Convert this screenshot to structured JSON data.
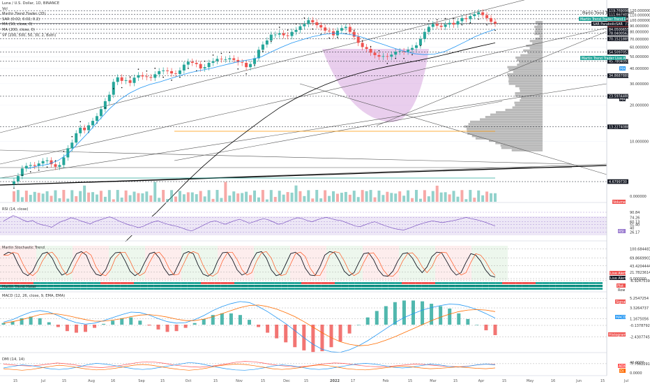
{
  "header": {
    "title": "Luna / U.S. Dollar, 1D, BINANCE",
    "legend": [
      "Vol",
      "Martin Trend Trader (35)",
      "SAR (0.02, 0.02, 0.2)",
      "MA (50, close, 0)",
      "MA (200, close, 0)",
      "VP (200, 500, 50, 30, 2, Both)"
    ]
  },
  "panes": {
    "rsi": "RSI (14, close)",
    "stoch": "Martin Stochastic Trend",
    "meter": "Martin Trend Meter",
    "macd": "MACD (12, 26, close, 9, EMA, EMA)",
    "dmi": "DMI (14, 14)"
  },
  "tags": {
    "stop_loss": "Martin Trend Trader Stop Loss",
    "trend_line": "Martin Trend Trader Trend Line",
    "sar": "SAR ParabolicSAR",
    "live_alert": "Martin Trend Trader Live Alert",
    "ma": "MA",
    "volume": "Volume",
    "rsi": "RSI",
    "stoch_live_alert": "Live Alert",
    "stoch_live_alert2": "Live Alert",
    "meter_plot": "Plot",
    "meter_row": "Row",
    "signal": "Signal",
    "macd": "MACD",
    "histogram": "Histogram",
    "adx": "ADX",
    "di": "DI"
  },
  "colors": {
    "up": "#26a69a",
    "down": "#ef5350",
    "ma50": "#2196f3",
    "ma200": "#000000",
    "vp": "#808080",
    "cup": "#ce93d8",
    "macd": "#2196f3",
    "signal": "#ff6d00",
    "adx": "#ff5252",
    "di_plus": "#2196f3",
    "di_minus": "#ff6d00"
  },
  "chart_data": {
    "type": "candlestick",
    "symbol": "LUNAUSD",
    "exchange": "BINANCE",
    "interval": "1D",
    "scale": "log",
    "x_axis_ticks": [
      "15",
      "Jul",
      "15",
      "Aug",
      "16",
      "Sep",
      "15",
      "Oct",
      "15",
      "Nov",
      "15",
      "Dec",
      "15",
      "2022",
      "17",
      "Feb",
      "15",
      "Mar",
      "15",
      "Apr",
      "15",
      "May",
      "16",
      "Jun",
      "15",
      "Jul"
    ],
    "price_axis_labels": [
      "120.000000",
      "110.000000",
      "100.000000",
      "90.000000",
      "80.000000",
      "70.000000",
      "60.000000",
      "50.000000",
      "40.000000",
      "30.000000",
      "20.000000",
      "10.000000",
      "0.000000"
    ],
    "price_levels": [
      {
        "value": "119.7690986",
        "bg": "#131722"
      },
      {
        "value": "111.6674013",
        "bg": "#131722"
      },
      {
        "value": "102.6068603",
        "bg": "#131722"
      },
      {
        "value": "93.6990049",
        "bg": "#ef5350"
      },
      {
        "value": "09:16:14",
        "bg": "#ef5350"
      },
      {
        "value": "92.7886777",
        "bg": "#131722"
      },
      {
        "value": "84.0500655",
        "bg": "#131722"
      },
      {
        "value": "78.0400562",
        "bg": "#131722"
      },
      {
        "value": "70.1521885",
        "bg": "#131722"
      },
      {
        "value": "54.5097053",
        "bg": "#131722"
      },
      {
        "value": "45.7804091",
        "bg": "#131722"
      },
      {
        "value": "34.8687889",
        "bg": "#131722"
      },
      {
        "value": "23.5934480",
        "bg": "#131722"
      },
      {
        "value": "13.2274088",
        "bg": "#131722"
      },
      {
        "value": "4.6799730",
        "bg": "#131722"
      }
    ],
    "volume_axis_labels": [
      "0.000000"
    ],
    "rsi_levels": [
      "90.84",
      "74.26",
      "60.13",
      "51.40",
      "40",
      "26.17"
    ],
    "stoch_levels": [
      "100.6844836",
      "69.8669903",
      "43.4204444",
      "21.7823614",
      "0.000000",
      "-6.9247539"
    ],
    "macd_levels": [
      "5.2547254",
      "3.3264737",
      "1.1675056",
      "-0.1378792",
      "-2.4307745",
      "-7.7562291"
    ],
    "dmi_levels": [
      "40.0000",
      "0.0000"
    ],
    "close_series": [
      4.7,
      5.2,
      6.0,
      6.3,
      6.4,
      6.3,
      6.6,
      6.9,
      7.0,
      6.5,
      6.2,
      6.4,
      7.4,
      8.8,
      9.8,
      11.7,
      13.0,
      12.4,
      13.6,
      14.8,
      16.2,
      18.5,
      21.5,
      24.3,
      31.0,
      33.8,
      31.6,
      32.0,
      30.4,
      33.6,
      35.2,
      34.4,
      34.0,
      33.5,
      35.8,
      38.0,
      38.5,
      38.0,
      36.4,
      36.0,
      38.5,
      43.0,
      45.5,
      44.5,
      43.5,
      40.0,
      41.0,
      44.5,
      46.0,
      48.0,
      47.5,
      47.5,
      48.5,
      47.0,
      45.0,
      44.5,
      41.0,
      43.5,
      48.5,
      57.0,
      63.0,
      68.0,
      76.0,
      76.0,
      78.0,
      75.0,
      74.0,
      80.0,
      83.0,
      89.0,
      93.0,
      100.0,
      96.0,
      91.0,
      87.0,
      82.0,
      81.0,
      75.0,
      82.0,
      86.0,
      88.0,
      80.0,
      73.0,
      65.0,
      60.0,
      58.0,
      54.0,
      51.5,
      50.0,
      50.5,
      50.0,
      52.0,
      55.0,
      55.5,
      55.0,
      57.0,
      59.0,
      62.0,
      70.0,
      80.0,
      88.0,
      93.0,
      90.0,
      88.0,
      92.0,
      95.0,
      92.0,
      98.0,
      104.0,
      102.0,
      108.0,
      112.0,
      116.0,
      110.0,
      104.0,
      97.0,
      93.7
    ],
    "ma50_series": [
      6.0,
      6.3,
      6.5,
      7.0,
      8.0,
      9.8,
      12.0,
      15.0,
      18.5,
      22.0,
      25.0,
      27.5,
      29.5,
      31.0,
      33.0,
      35.0,
      37.0,
      38.5,
      40.0,
      42.0,
      44.0,
      46.0,
      47.5,
      50.0,
      55.0,
      60.0,
      65.0,
      69.0,
      73.0,
      76.0,
      78.0,
      77.5,
      75.5,
      72.0,
      67.0,
      63.0,
      59.0,
      55.5,
      53.0,
      52.0,
      52.5,
      55.0,
      60.0,
      66.0,
      73.0,
      79.0,
      84.0
    ],
    "ma200_series": [
      1.5,
      2.0,
      2.6,
      3.5,
      4.7,
      6.2,
      8.0,
      10.0,
      12.5,
      15.5,
      19.0,
      22.5,
      26.0,
      29.5,
      33.0,
      36.0,
      39.0,
      41.5,
      44.0,
      46.5,
      49.5,
      53.0,
      57.0,
      61.0,
      65.0
    ],
    "rsi_series": [
      62,
      71,
      80,
      74,
      66,
      60,
      64,
      55,
      50,
      47,
      42,
      52,
      61,
      66,
      73,
      69,
      63,
      58,
      53,
      61,
      66,
      71,
      76,
      70,
      62,
      56,
      50,
      46,
      41,
      45,
      53,
      59,
      63,
      57,
      52,
      48,
      45,
      40,
      34,
      30,
      37,
      45,
      53,
      60,
      63,
      57,
      52,
      58,
      64,
      68,
      62,
      55,
      60,
      66,
      70,
      66,
      59,
      52,
      55,
      62,
      68,
      73,
      70,
      64,
      60,
      66,
      71,
      74,
      70,
      66,
      64,
      58,
      52,
      46,
      44,
      50,
      56,
      60,
      54,
      48,
      43,
      38,
      35,
      33,
      38,
      44,
      50,
      55,
      59,
      63,
      60,
      57,
      60,
      63,
      66,
      70,
      74,
      70,
      67,
      63,
      58,
      52,
      46
    ],
    "stoch_series": [
      80,
      90,
      85,
      50,
      20,
      10,
      25,
      60,
      85,
      90,
      70,
      35,
      12,
      20,
      55,
      85,
      92,
      80,
      40,
      15,
      10,
      30,
      70,
      88,
      90,
      60,
      25,
      10,
      20,
      55,
      85,
      90,
      70,
      35,
      12,
      15,
      50,
      85,
      92,
      85,
      45,
      15,
      8,
      20,
      60,
      88,
      90,
      65,
      30,
      12,
      20,
      60,
      88,
      92,
      70,
      30,
      10,
      15,
      50,
      85,
      90,
      75,
      35,
      12,
      10,
      40,
      80,
      92,
      88,
      60,
      25,
      10,
      20,
      55,
      85,
      88,
      65,
      30,
      10,
      8,
      25,
      60,
      85,
      88,
      70,
      40,
      20,
      40,
      75,
      90,
      88,
      60,
      30,
      12,
      20,
      55,
      85,
      80,
      60,
      30,
      10,
      5
    ],
    "macd_series": [
      0.5,
      1.0,
      1.8,
      2.5,
      2.8,
      2.5,
      1.8,
      1.0,
      0.4,
      0.1,
      0.3,
      0.8,
      1.4,
      2.0,
      2.5,
      2.4,
      1.9,
      1.2,
      0.6,
      0.3,
      0.4,
      1.0,
      1.8,
      2.8,
      3.6,
      4.2,
      4.6,
      4.4,
      3.6,
      2.6,
      1.4,
      0.2,
      -1.2,
      -2.6,
      -3.9,
      -4.9,
      -5.4,
      -5.5,
      -5.0,
      -4.2,
      -3.2,
      -2.0,
      -0.8,
      0.4,
      1.4,
      2.2,
      2.9,
      3.4,
      3.8,
      4.1,
      4.0,
      3.6,
      3.0,
      2.2,
      1.3
    ],
    "signal_series": [
      0.3,
      0.6,
      1.0,
      1.5,
      2.0,
      2.2,
      2.1,
      1.8,
      1.4,
      1.0,
      0.7,
      0.7,
      0.9,
      1.2,
      1.6,
      1.9,
      2.0,
      1.8,
      1.5,
      1.1,
      0.8,
      0.8,
      1.1,
      1.6,
      2.2,
      2.8,
      3.4,
      3.8,
      3.9,
      3.6,
      3.1,
      2.4,
      1.6,
      0.6,
      -0.5,
      -1.6,
      -2.6,
      -3.4,
      -3.9,
      -4.2,
      -4.1,
      -3.7,
      -3.1,
      -2.4,
      -1.6,
      -0.8,
      0.0,
      0.8,
      1.5,
      2.1,
      2.6,
      2.9,
      3.0,
      2.9,
      2.6
    ],
    "adx_series": [
      30,
      28,
      26,
      25,
      27,
      30,
      33,
      31,
      28,
      24,
      22,
      21,
      23,
      26,
      30,
      34,
      36,
      35,
      32,
      28,
      25,
      23,
      22,
      24,
      27,
      31,
      35,
      37,
      36,
      33,
      29,
      26,
      24,
      23,
      25,
      28,
      31,
      33,
      32,
      29,
      26,
      24,
      23,
      24,
      26,
      28,
      30,
      29,
      27,
      25,
      24,
      23,
      25,
      28,
      30,
      29
    ],
    "di_plus_series": [
      20,
      24,
      28,
      26,
      22,
      18,
      16,
      18,
      22,
      28,
      32,
      30,
      26,
      22,
      18,
      16,
      18,
      22,
      26,
      30,
      34,
      32,
      27,
      22,
      18,
      15,
      14,
      16,
      20,
      25,
      28,
      26,
      22,
      18,
      16,
      18,
      22,
      26,
      30,
      32,
      30,
      26,
      22,
      20,
      22,
      26,
      30,
      28,
      24,
      22,
      24,
      28,
      30,
      28
    ],
    "di_minus_series": [
      18,
      16,
      14,
      16,
      20,
      24,
      27,
      25,
      21,
      17,
      15,
      16,
      19,
      23,
      27,
      29,
      27,
      23,
      19,
      16,
      14,
      16,
      20,
      25,
      28,
      30,
      29,
      26,
      22,
      18,
      16,
      18,
      21,
      25,
      28,
      26,
      22,
      18,
      16,
      15,
      17,
      20,
      23,
      25,
      23,
      20,
      18,
      19,
      21,
      23,
      21,
      19,
      18,
      20
    ]
  }
}
